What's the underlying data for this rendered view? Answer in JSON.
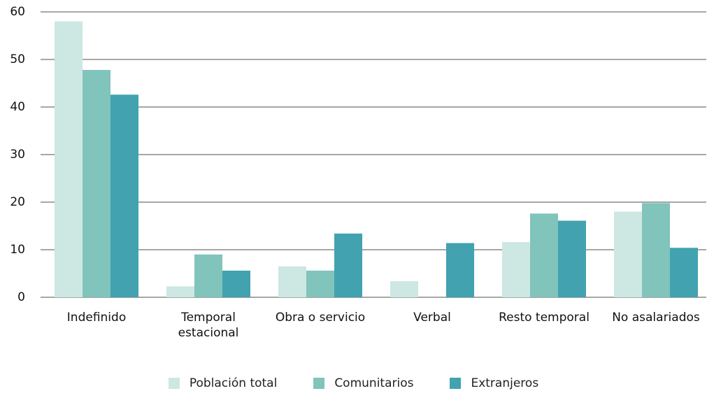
{
  "chart_data": {
    "type": "bar",
    "categories": [
      "Indefinido",
      "Temporal estacional",
      "Obra o servicio",
      "Verbal",
      "Resto temporal",
      "No asalariados"
    ],
    "series": [
      {
        "name": "Población total",
        "color": "#cde7e3",
        "values": [
          58,
          2.3,
          6.5,
          3.4,
          11.6,
          18
        ]
      },
      {
        "name": "Comunitarios",
        "color": "#80c4bb",
        "values": [
          47.8,
          9,
          5.6,
          0,
          17.6,
          19.8
        ]
      },
      {
        "name": "Extranjeros",
        "color": "#42a2b0",
        "values": [
          42.6,
          5.6,
          13.4,
          11.4,
          16.1,
          10.4
        ]
      }
    ],
    "ylim": [
      0,
      60
    ],
    "yticks": [
      0,
      10,
      20,
      30,
      40,
      50,
      60
    ],
    "grid": true,
    "legend": "bottom"
  }
}
